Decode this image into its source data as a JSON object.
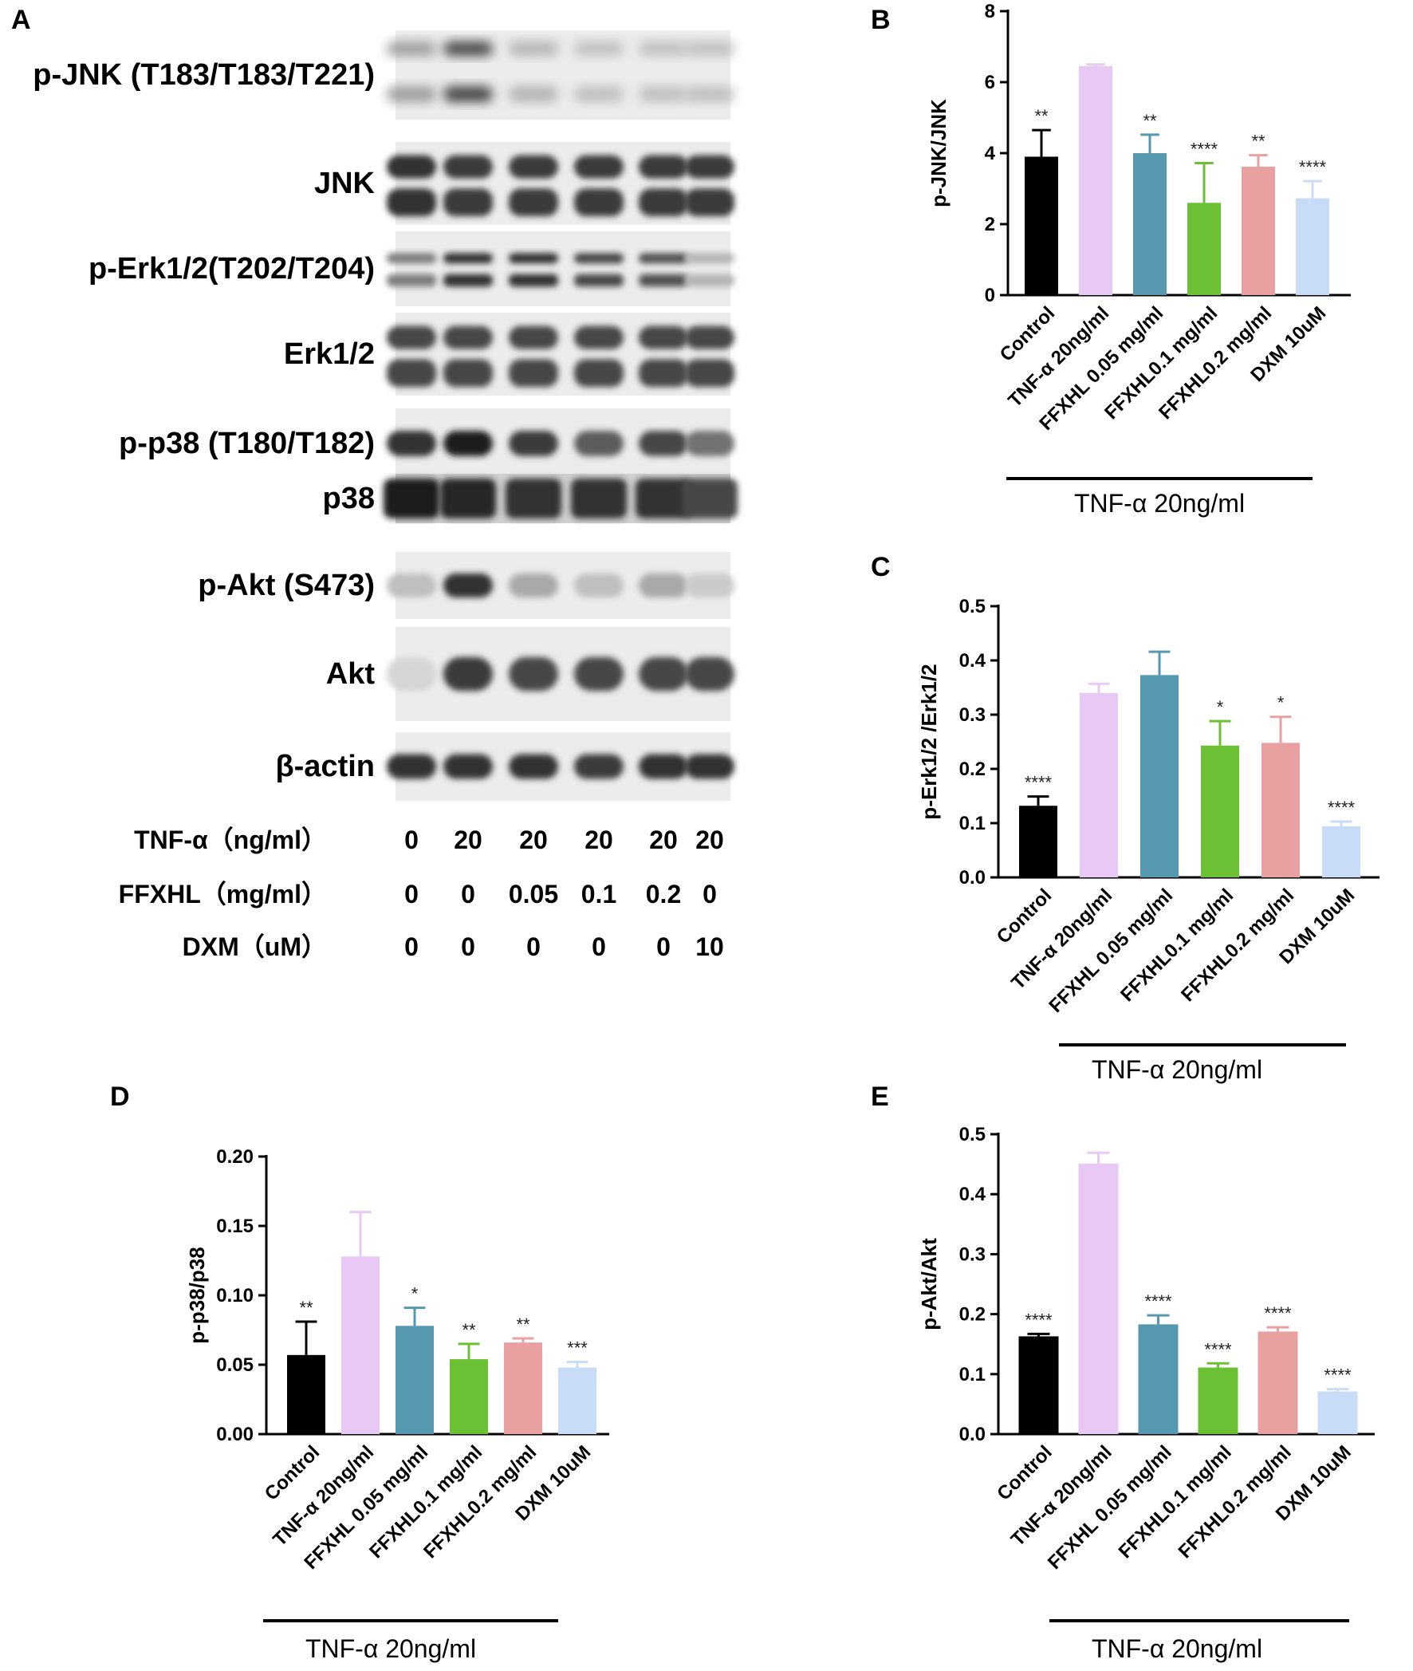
{
  "panels": {
    "A": "A",
    "B": "B",
    "C": "C",
    "D": "D",
    "E": "E"
  },
  "blot": {
    "bands": [
      {
        "label": "p-JNK (T183/T183/T221)",
        "style": "jnk-phos",
        "intensity": [
          0.35,
          0.75,
          0.25,
          0.2,
          0.2,
          0.2
        ]
      },
      {
        "label": "JNK",
        "style": "double",
        "intensity": [
          0.85,
          0.8,
          0.8,
          0.8,
          0.8,
          0.8
        ]
      },
      {
        "label": "p-Erk1/2(T202/T204)",
        "style": "double-thin",
        "intensity": [
          0.5,
          0.85,
          0.85,
          0.75,
          0.7,
          0.25
        ]
      },
      {
        "label": "Erk1/2",
        "style": "double",
        "intensity": [
          0.75,
          0.75,
          0.75,
          0.75,
          0.75,
          0.75
        ]
      },
      {
        "label": "p-p38 (T180/T182)",
        "style": "single",
        "intensity": [
          0.85,
          0.95,
          0.8,
          0.65,
          0.75,
          0.55
        ]
      },
      {
        "label": "p38",
        "style": "heavy",
        "intensity": [
          0.95,
          0.9,
          0.85,
          0.85,
          0.85,
          0.75
        ]
      },
      {
        "label": "p-Akt (S473)",
        "style": "single",
        "intensity": [
          0.2,
          0.85,
          0.3,
          0.2,
          0.3,
          0.15
        ]
      },
      {
        "label": "Akt",
        "style": "single",
        "intensity": [
          0.1,
          0.8,
          0.75,
          0.75,
          0.75,
          0.75
        ]
      },
      {
        "label": "β-actin",
        "style": "single",
        "intensity": [
          0.85,
          0.85,
          0.85,
          0.8,
          0.85,
          0.85
        ]
      }
    ],
    "conditions": [
      {
        "label": "TNF-α（ng/ml）",
        "values": [
          "0",
          "20",
          "20",
          "20",
          "20",
          "20"
        ]
      },
      {
        "label": "FFXHL（mg/ml）",
        "values": [
          "0",
          "0",
          "0.05",
          "0.1",
          "0.2",
          "0"
        ]
      },
      {
        "label": "DXM（uM）",
        "values": [
          "0",
          "0",
          "0",
          "0",
          "0",
          "10"
        ]
      }
    ]
  },
  "colors": [
    "#000000",
    "#e8c8f4",
    "#5698b0",
    "#6cc034",
    "#e8a0a0",
    "#c8dcf8"
  ],
  "chart_data": [
    {
      "panel": "B",
      "type": "bar",
      "categories": [
        "Control",
        "TNF-α 20ng/ml",
        "FFXHL 0.05 mg/ml",
        "FFXHL0.1 mg/ml",
        "FFXHL0.2 mg/ml",
        "DXM 10uM"
      ],
      "values": [
        3.9,
        6.45,
        4.0,
        2.6,
        3.62,
        2.73
      ],
      "errors": [
        0.75,
        0.05,
        0.52,
        1.12,
        0.32,
        0.48
      ],
      "significance": [
        "**",
        "",
        "**",
        "****",
        "**",
        "****"
      ],
      "ylabel": "p-JNK/JNK",
      "ylim": [
        0,
        8
      ],
      "yticks": [
        "0",
        "2",
        "4",
        "6",
        "8"
      ],
      "group_label": "TNF-α 20ng/ml"
    },
    {
      "panel": "C",
      "type": "bar",
      "categories": [
        "Control",
        "TNF-α 20ng/ml",
        "FFXHL 0.05 mg/ml",
        "FFXHL0.1 mg/ml",
        "FFXHL0.2 mg/ml",
        "DXM 10uM"
      ],
      "values": [
        0.132,
        0.34,
        0.373,
        0.243,
        0.248,
        0.094
      ],
      "errors": [
        0.017,
        0.017,
        0.043,
        0.045,
        0.048,
        0.009
      ],
      "significance": [
        "****",
        "",
        "",
        "*",
        "*",
        "****"
      ],
      "ylabel": "p-Erk1/2 /Erk1/2",
      "ylim": [
        0,
        0.5
      ],
      "yticks": [
        "0.0",
        "0.1",
        "0.2",
        "0.3",
        "0.4",
        "0.5"
      ],
      "group_label": "TNF-α 20ng/ml"
    },
    {
      "panel": "D",
      "type": "bar",
      "categories": [
        "Control",
        "TNF-α 20ng/ml",
        "FFXHL 0.05 mg/ml",
        "FFXHL0.1 mg/ml",
        "FFXHL0.2 mg/ml",
        "DXM 10uM"
      ],
      "values": [
        0.057,
        0.128,
        0.078,
        0.054,
        0.066,
        0.048
      ],
      "errors": [
        0.024,
        0.032,
        0.013,
        0.011,
        0.003,
        0.004
      ],
      "significance": [
        "**",
        "",
        "*",
        "**",
        "**",
        "***"
      ],
      "ylabel": "p-p38/p38",
      "ylim": [
        0,
        0.2
      ],
      "yticks": [
        "0.00",
        "0.05",
        "0.10",
        "0.15",
        "0.20"
      ],
      "group_label": "TNF-α 20ng/ml"
    },
    {
      "panel": "E",
      "type": "bar",
      "categories": [
        "Control",
        "TNF-α 20ng/ml",
        "FFXHL 0.05 mg/ml",
        "FFXHL0.1 mg/ml",
        "FFXHL0.2 mg/ml",
        "DXM 10uM"
      ],
      "values": [
        0.163,
        0.451,
        0.183,
        0.111,
        0.171,
        0.071
      ],
      "errors": [
        0.004,
        0.018,
        0.015,
        0.007,
        0.007,
        0.004
      ],
      "significance": [
        "****",
        "",
        "****",
        "****",
        "****",
        "****"
      ],
      "ylabel": "p-Akt/Akt",
      "ylim": [
        0,
        0.5
      ],
      "yticks": [
        "0.0",
        "0.1",
        "0.2",
        "0.3",
        "0.4",
        "0.5"
      ],
      "group_label": "TNF-α 20ng/ml"
    }
  ]
}
